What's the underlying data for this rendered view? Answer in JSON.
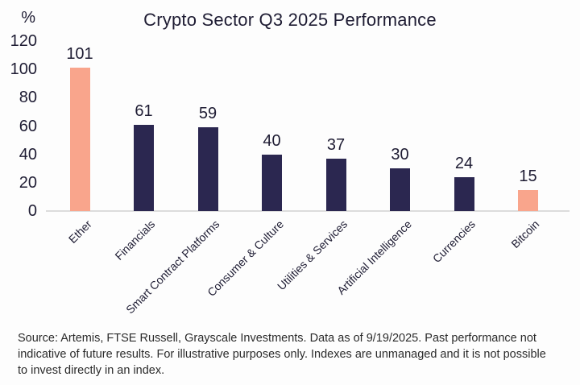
{
  "title": "Crypto Sector Q3 2025 Performance",
  "y_axis": {
    "unit_label": "%",
    "ticks": [
      120,
      100,
      80,
      60,
      40,
      20,
      0
    ]
  },
  "chart_data": {
    "type": "bar",
    "title": "Crypto Sector Q3 2025 Performance",
    "xlabel": "",
    "ylabel": "%",
    "ylim": [
      0,
      120
    ],
    "yticks": [
      0,
      20,
      40,
      60,
      80,
      100,
      120
    ],
    "grid": false,
    "legend": "none",
    "categories": [
      "Ether",
      "Financials",
      "Smart Contract Platforms",
      "Consumer & Culture",
      "Utilities & Services",
      "Artificial Intelligence",
      "Currencies",
      "Bitcoin"
    ],
    "values": [
      101,
      61,
      59,
      40,
      37,
      30,
      24,
      15
    ],
    "data_labels": [
      "101",
      "61",
      "59",
      "40",
      "37",
      "30",
      "24",
      "15"
    ],
    "bar_color_keys": [
      "salmon",
      "navy",
      "navy",
      "navy",
      "navy",
      "navy",
      "navy",
      "salmon"
    ]
  },
  "colors": {
    "salmon": "#F9A58C",
    "navy": "#2B2750",
    "axis_line": "#DCDCDC",
    "text": "#1E1C33",
    "footer_text": "#2B2B2B",
    "background": "#FDFDFD"
  },
  "footer": {
    "lines": [
      "Source: Artemis, FTSE Russell, Grayscale Investments. Data as of 9/19/2025. Past performance not",
      "indicative of future results. For illustrative purposes only. Indexes are unmanaged and it is not possible",
      "to invest directly in an index."
    ]
  }
}
